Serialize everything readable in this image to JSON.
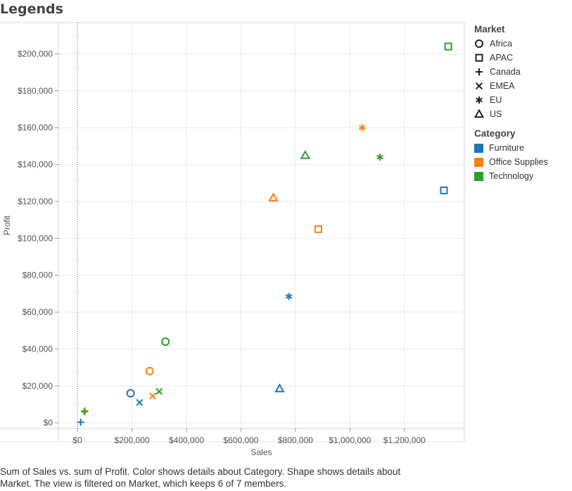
{
  "title": "Legends",
  "caption_line1": "Sum of Sales vs. sum of Profit.  Color shows details about Category.  Shape shows details about",
  "caption_line2": "Market. The view is filtered on Market, which keeps 6 of 7 members.",
  "legend_market": {
    "title": "Market",
    "items": [
      {
        "label": "Africa",
        "shape": "circle"
      },
      {
        "label": "APAC",
        "shape": "square"
      },
      {
        "label": "Canada",
        "shape": "plus"
      },
      {
        "label": "EMEA",
        "shape": "cross"
      },
      {
        "label": "EU",
        "shape": "asterisk"
      },
      {
        "label": "US",
        "shape": "triangle"
      }
    ]
  },
  "legend_category": {
    "title": "Category",
    "items": [
      {
        "label": "Furniture",
        "color": "#1f77b4"
      },
      {
        "label": "Office Supplies",
        "color": "#ff7f0e"
      },
      {
        "label": "Technology",
        "color": "#2ca02c"
      }
    ]
  },
  "chart_data": {
    "type": "scatter",
    "title": "Legends",
    "xlabel": "Sales",
    "ylabel": "Profit",
    "xlim": [
      -70000,
      1420000
    ],
    "ylim": [
      -3000,
      217000
    ],
    "x_ticks": [
      0,
      200000,
      400000,
      600000,
      800000,
      1000000,
      1200000
    ],
    "x_tick_labels": [
      "$0",
      "$200,000",
      "$400,000",
      "$600,000",
      "$800,000",
      "$1,000,000",
      "$1,200,000"
    ],
    "y_ticks": [
      0,
      20000,
      40000,
      60000,
      80000,
      100000,
      120000,
      140000,
      160000,
      180000,
      200000
    ],
    "y_tick_labels": [
      "$0",
      "$20,000",
      "$40,000",
      "$60,000",
      "$80,000",
      "$100,000",
      "$120,000",
      "$140,000",
      "$160,000",
      "$180,000",
      "$200,000"
    ],
    "grid": true,
    "zero_line": "x",
    "legend_placement": "right",
    "points": [
      {
        "market": "Africa",
        "category": "Furniture",
        "x": 195000,
        "y": 16000
      },
      {
        "market": "Africa",
        "category": "Office Supplies",
        "x": 265000,
        "y": 28000
      },
      {
        "market": "Africa",
        "category": "Technology",
        "x": 323000,
        "y": 44000
      },
      {
        "market": "APAC",
        "category": "Furniture",
        "x": 1345000,
        "y": 126000
      },
      {
        "market": "APAC",
        "category": "Office Supplies",
        "x": 884000,
        "y": 105000
      },
      {
        "market": "APAC",
        "category": "Technology",
        "x": 1361000,
        "y": 204000
      },
      {
        "market": "Canada",
        "category": "Furniture",
        "x": 12000,
        "y": 300
      },
      {
        "market": "Canada",
        "category": "Office Supplies",
        "x": 28000,
        "y": 6500
      },
      {
        "market": "Canada",
        "category": "Technology",
        "x": 25000,
        "y": 6000
      },
      {
        "market": "EMEA",
        "category": "Furniture",
        "x": 228000,
        "y": 11000
      },
      {
        "market": "EMEA",
        "category": "Office Supplies",
        "x": 276000,
        "y": 14500
      },
      {
        "market": "EMEA",
        "category": "Technology",
        "x": 300000,
        "y": 17000
      },
      {
        "market": "EU",
        "category": "Furniture",
        "x": 776000,
        "y": 68500
      },
      {
        "market": "EU",
        "category": "Office Supplies",
        "x": 1045000,
        "y": 160000
      },
      {
        "market": "EU",
        "category": "Technology",
        "x": 1110000,
        "y": 144000
      },
      {
        "market": "US",
        "category": "Furniture",
        "x": 742000,
        "y": 18500
      },
      {
        "market": "US",
        "category": "Office Supplies",
        "x": 719000,
        "y": 122000
      },
      {
        "market": "US",
        "category": "Technology",
        "x": 836000,
        "y": 145000
      }
    ]
  }
}
